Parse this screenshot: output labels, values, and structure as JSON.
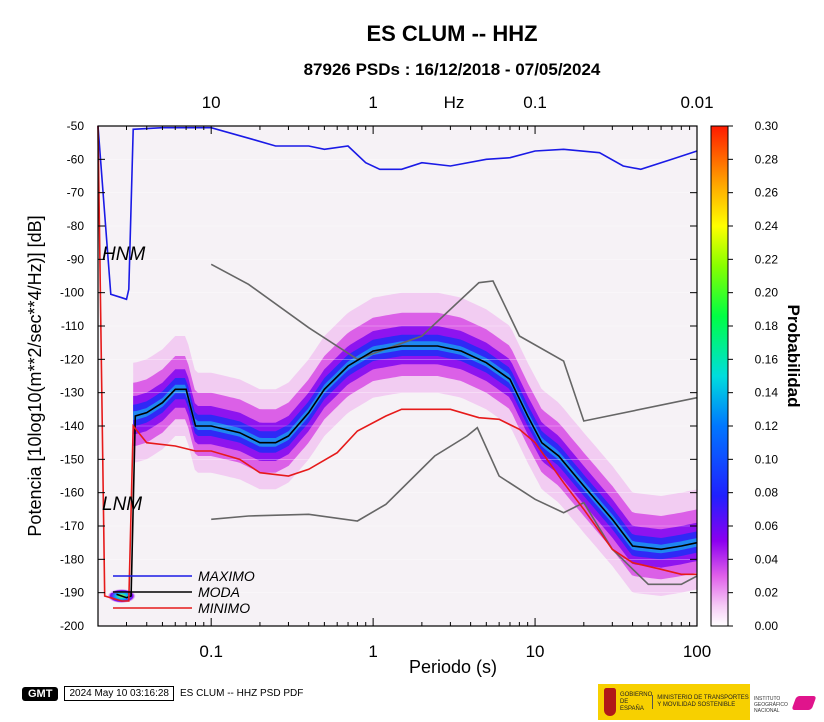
{
  "chart_data": {
    "type": "heatmap",
    "title": "ES CLUM -- HHZ",
    "subtitle": "87926 PSDs : 16/12/2018 - 07/05/2024",
    "xlabel": "Periodo (s)",
    "ylabel": "Potencia [10log10(m**2/sec**4/Hz)] [dB]",
    "x_scale": "log",
    "xlim": [
      0.02,
      100
    ],
    "ylim": [
      -200,
      -50
    ],
    "x_ticks": [
      0.1,
      1,
      10,
      100
    ],
    "x_tick_labels": [
      "0.1",
      "1",
      "10",
      "100"
    ],
    "y_ticks": [
      -200,
      -190,
      -180,
      -170,
      -160,
      -150,
      -140,
      -130,
      -120,
      -110,
      -100,
      -90,
      -80,
      -70,
      -60,
      -50
    ],
    "top_axis_label": "Hz",
    "top_ticks": [
      10,
      1,
      0.1,
      0.01
    ],
    "top_tick_labels": [
      "10",
      "1",
      "0.1",
      "0.01"
    ],
    "colorbar": {
      "label": "Probabilidad",
      "range": [
        0,
        0.3
      ],
      "ticks": [
        0.0,
        0.02,
        0.04,
        0.06,
        0.08,
        0.1,
        0.12,
        0.14,
        0.16,
        0.18,
        0.2,
        0.22,
        0.24,
        0.26,
        0.28,
        0.3
      ],
      "tick_labels": [
        "0.00",
        "0.02",
        "0.04",
        "0.06",
        "0.08",
        "0.10",
        "0.12",
        "0.14",
        "0.16",
        "0.18",
        "0.20",
        "0.22",
        "0.24",
        "0.26",
        "0.28",
        "0.30"
      ]
    },
    "models": {
      "hnm_label": "HNM",
      "lnm_label": "LNM",
      "HNM": [
        [
          0.1,
          -91.5
        ],
        [
          0.17,
          -97.5
        ],
        [
          0.4,
          -110.5
        ],
        [
          0.8,
          -120
        ],
        [
          2.0,
          -113
        ],
        [
          4.5,
          -97
        ],
        [
          5.5,
          -96.5
        ],
        [
          8,
          -113
        ],
        [
          15,
          -120.5
        ],
        [
          20,
          -138.5
        ],
        [
          100,
          -131.5
        ]
      ],
      "LNM": [
        [
          0.1,
          -168
        ],
        [
          0.17,
          -167
        ],
        [
          0.4,
          -166.5
        ],
        [
          0.8,
          -168.5
        ],
        [
          1.2,
          -163.5
        ],
        [
          2.4,
          -149
        ],
        [
          3.8,
          -143
        ],
        [
          4.4,
          -140.5
        ],
        [
          6,
          -155
        ],
        [
          10,
          -162
        ],
        [
          15,
          -166
        ],
        [
          20,
          -163
        ],
        [
          30,
          -177
        ],
        [
          50,
          -187.5
        ],
        [
          80,
          -187.5
        ],
        [
          100,
          -185
        ]
      ]
    },
    "series": [
      {
        "name": "MAXIMO",
        "color": "#1a1ae6",
        "points": [
          [
            0.02,
            -50
          ],
          [
            0.024,
            -100.5
          ],
          [
            0.028,
            -101.5
          ],
          [
            0.03,
            -102
          ],
          [
            0.031,
            -99
          ],
          [
            0.033,
            -51
          ],
          [
            0.05,
            -50.5
          ],
          [
            0.1,
            -50.5
          ],
          [
            0.18,
            -54
          ],
          [
            0.25,
            -56
          ],
          [
            0.4,
            -56
          ],
          [
            0.5,
            -57
          ],
          [
            0.7,
            -56
          ],
          [
            0.9,
            -61
          ],
          [
            1.1,
            -63
          ],
          [
            1.5,
            -63
          ],
          [
            2.0,
            -61
          ],
          [
            3.0,
            -62
          ],
          [
            5,
            -60
          ],
          [
            7,
            -59.5
          ],
          [
            10,
            -57.5
          ],
          [
            15,
            -57
          ],
          [
            25,
            -58
          ],
          [
            35,
            -62
          ],
          [
            45,
            -63
          ],
          [
            70,
            -60
          ],
          [
            100,
            -57.5
          ]
        ]
      },
      {
        "name": "MODA",
        "color": "#000000",
        "points": [
          [
            0.026,
            -190.5
          ],
          [
            0.03,
            -191.5
          ],
          [
            0.032,
            -191
          ],
          [
            0.034,
            -137
          ],
          [
            0.04,
            -136
          ],
          [
            0.05,
            -133
          ],
          [
            0.06,
            -129
          ],
          [
            0.07,
            -129
          ],
          [
            0.08,
            -140
          ],
          [
            0.1,
            -140
          ],
          [
            0.15,
            -142
          ],
          [
            0.2,
            -145
          ],
          [
            0.25,
            -145
          ],
          [
            0.3,
            -143
          ],
          [
            0.4,
            -136
          ],
          [
            0.5,
            -129
          ],
          [
            0.7,
            -122
          ],
          [
            1.0,
            -117.5
          ],
          [
            1.5,
            -116
          ],
          [
            2.5,
            -116
          ],
          [
            3.5,
            -117.5
          ],
          [
            5,
            -121
          ],
          [
            7,
            -126
          ],
          [
            9,
            -137
          ],
          [
            11,
            -145
          ],
          [
            14,
            -149
          ],
          [
            20,
            -158
          ],
          [
            30,
            -168
          ],
          [
            40,
            -176
          ],
          [
            60,
            -177
          ],
          [
            80,
            -176
          ],
          [
            100,
            -175
          ]
        ]
      },
      {
        "name": "MINIMO",
        "color": "#e61a1a",
        "points": [
          [
            0.02,
            -50
          ],
          [
            0.022,
            -191
          ],
          [
            0.028,
            -192.5
          ],
          [
            0.031,
            -192.5
          ],
          [
            0.033,
            -140
          ],
          [
            0.04,
            -145
          ],
          [
            0.06,
            -146
          ],
          [
            0.08,
            -147.5
          ],
          [
            0.1,
            -147.5
          ],
          [
            0.15,
            -150
          ],
          [
            0.2,
            -154
          ],
          [
            0.3,
            -155
          ],
          [
            0.4,
            -153
          ],
          [
            0.6,
            -148
          ],
          [
            0.8,
            -141.5
          ],
          [
            1.2,
            -137
          ],
          [
            1.5,
            -135
          ],
          [
            3,
            -135
          ],
          [
            4.5,
            -137.5
          ],
          [
            6,
            -138
          ],
          [
            8,
            -141
          ],
          [
            10,
            -145
          ],
          [
            15,
            -157
          ],
          [
            20,
            -165
          ],
          [
            30,
            -177
          ],
          [
            40,
            -181
          ],
          [
            60,
            -183
          ],
          [
            80,
            -184.5
          ],
          [
            100,
            -184.5
          ]
        ]
      }
    ]
  },
  "footer": {
    "gmt_logo": "GMT",
    "timestamp": "2024 May 10 03:16:28",
    "caption": "ES CLUM -- HHZ PSD PDF"
  },
  "logos": {
    "gov_line1": "GOBIERNO",
    "gov_line2": "DE ESPAÑA",
    "ministry": "MINISTERIO DE TRANSPORTES Y MOVILIDAD SOSTENIBLE",
    "ign": "INSTITUTO GEOGRÁFICO NACIONAL"
  }
}
